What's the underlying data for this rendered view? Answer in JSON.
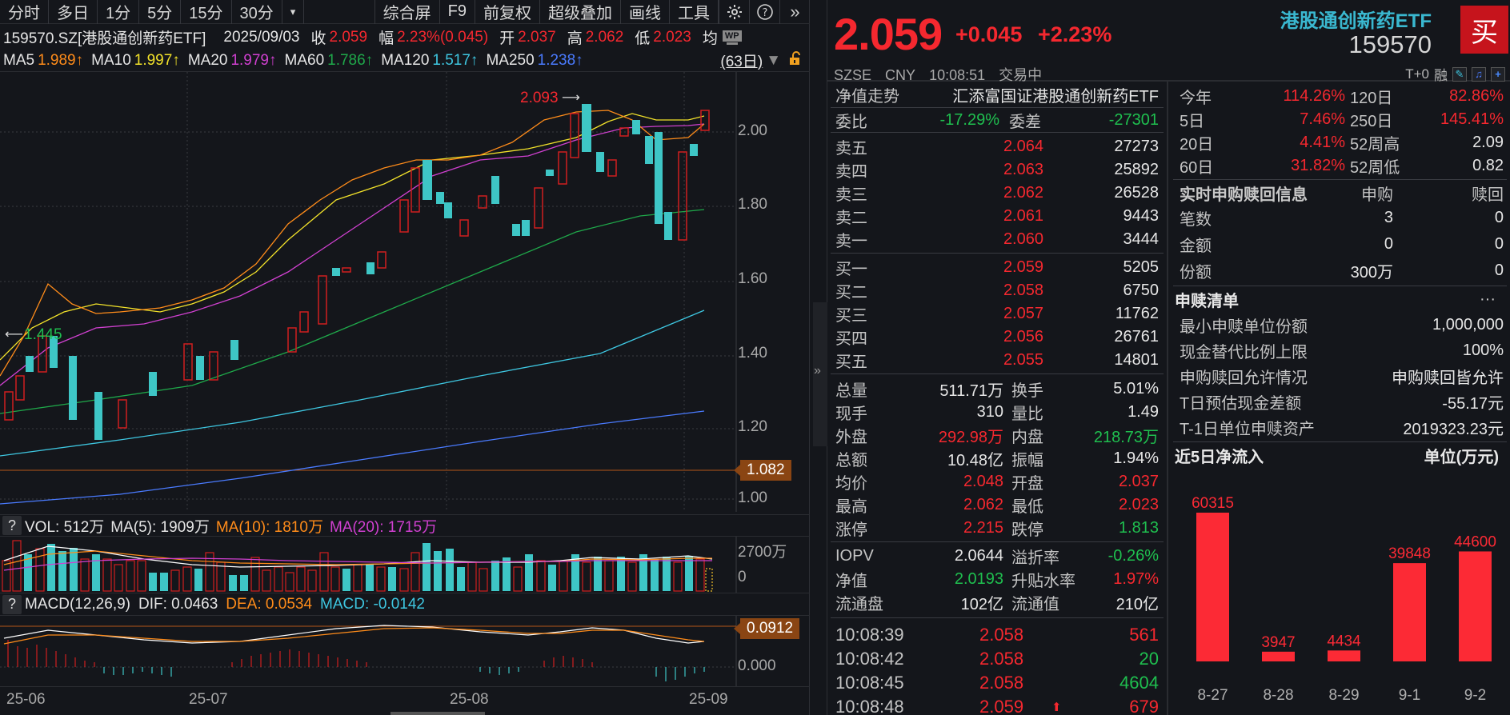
{
  "toolbar": {
    "periods": [
      "分时",
      "多日",
      "1分",
      "5分",
      "15分",
      "30分"
    ],
    "more_icon": "dropdown-icon",
    "actions": [
      "综合屏",
      "F9",
      "前复权",
      "超级叠加",
      "画线",
      "工具"
    ],
    "icons": [
      "gear-icon",
      "help-icon",
      "expand-icon"
    ]
  },
  "info": {
    "symbol": "159570.SZ[港股通创新药ETF]",
    "date": "2025/09/03",
    "close_label": "收",
    "close": "2.059",
    "range_label": "幅",
    "range": "2.23%(0.045)",
    "open_label": "开",
    "open": "2.037",
    "high_label": "高",
    "high": "2.062",
    "low_label": "低",
    "low": "2.023",
    "avg_label": "均",
    "wp_label": "WP"
  },
  "ma": {
    "items": [
      {
        "label": "MA5",
        "value": "1.989↑",
        "color": "#ff8c1a"
      },
      {
        "label": "MA10",
        "value": "1.997↑",
        "color": "#f2e22a"
      },
      {
        "label": "MA20",
        "value": "1.979↑",
        "color": "#d040d0"
      },
      {
        "label": "MA60",
        "value": "1.786↑",
        "color": "#1fa84a"
      },
      {
        "label": "MA120",
        "value": "1.517↑",
        "color": "#3ec6e0"
      },
      {
        "label": "MA250",
        "value": "1.238↑",
        "color": "#4a7bff"
      }
    ],
    "range": "(63日)"
  },
  "price_axis": {
    "ticks": [
      "2.00",
      "1.80",
      "1.60",
      "1.40",
      "1.20",
      "1.00"
    ],
    "tag": "1.082",
    "max_label": "2.093",
    "min_label": "1.445"
  },
  "volume": {
    "label": "VOL: 512万",
    "ma5": "MA(5): 1909万",
    "ma10": "MA(10): 1810万",
    "ma20": "MA(20): 1715万",
    "axis_top": "2700万",
    "axis_zero": "0"
  },
  "macd": {
    "label": "MACD(12,26,9)",
    "dif": "DIF: 0.0463",
    "dea": "DEA: 0.0534",
    "macd": "MACD: -0.0142",
    "tag": "0.0912",
    "axis_zero": "0.000"
  },
  "dates": [
    "25-06",
    "25-07",
    "25-08",
    "25-09"
  ],
  "quote": {
    "price": "2.059",
    "change": "+0.045",
    "change_pct": "+2.23%",
    "exchange": "SZSE",
    "currency": "CNY",
    "time": "10:08:51",
    "status": "交易中",
    "name": "港股通创新药ETF",
    "code": "159570",
    "buy": "买",
    "tplus": "T+0",
    "margin": "融"
  },
  "orderbook": {
    "nav_label": "净值走势",
    "fund_name": "汇添富国证港股通创新药ETF",
    "ratio_label": "委比",
    "ratio": "-17.29%",
    "diff_label": "委差",
    "diff": "-27301",
    "asks": [
      {
        "label": "卖五",
        "price": "2.064",
        "vol": "27273"
      },
      {
        "label": "卖四",
        "price": "2.063",
        "vol": "25892"
      },
      {
        "label": "卖三",
        "price": "2.062",
        "vol": "26528"
      },
      {
        "label": "卖二",
        "price": "2.061",
        "vol": "9443"
      },
      {
        "label": "卖一",
        "price": "2.060",
        "vol": "3444"
      }
    ],
    "bids": [
      {
        "label": "买一",
        "price": "2.059",
        "vol": "5205"
      },
      {
        "label": "买二",
        "price": "2.058",
        "vol": "6750"
      },
      {
        "label": "买三",
        "price": "2.057",
        "vol": "11762"
      },
      {
        "label": "买四",
        "price": "2.056",
        "vol": "26761"
      },
      {
        "label": "买五",
        "price": "2.055",
        "vol": "14801"
      }
    ]
  },
  "stats": [
    {
      "l1": "总量",
      "v1": "511.71万",
      "c1": "white",
      "l2": "换手",
      "v2": "5.01%",
      "c2": "white"
    },
    {
      "l1": "现手",
      "v1": "310",
      "c1": "white",
      "l2": "量比",
      "v2": "1.49",
      "c2": "white"
    },
    {
      "l1": "外盘",
      "v1": "292.98万",
      "c1": "red",
      "l2": "内盘",
      "v2": "218.73万",
      "c2": "green"
    },
    {
      "l1": "总额",
      "v1": "10.48亿",
      "c1": "white",
      "l2": "振幅",
      "v2": "1.94%",
      "c2": "white"
    },
    {
      "l1": "均价",
      "v1": "2.048",
      "c1": "red",
      "l2": "开盘",
      "v2": "2.037",
      "c2": "red"
    },
    {
      "l1": "最高",
      "v1": "2.062",
      "c1": "red",
      "l2": "最低",
      "v2": "2.023",
      "c2": "red"
    },
    {
      "l1": "涨停",
      "v1": "2.215",
      "c1": "red",
      "l2": "跌停",
      "v2": "1.813",
      "c2": "green"
    }
  ],
  "etf_stats": [
    {
      "l1": "IOPV",
      "v1": "2.0644",
      "c1": "white",
      "l2": "溢折率",
      "v2": "-0.26%",
      "c2": "green"
    },
    {
      "l1": "净值",
      "v1": "2.0193",
      "c1": "green",
      "l2": "升贴水率",
      "v2": "1.97%",
      "c2": "red"
    },
    {
      "l1": "流通盘",
      "v1": "102亿",
      "c1": "white",
      "l2": "流通值",
      "v2": "210亿",
      "c2": "white"
    }
  ],
  "ticks": [
    {
      "time": "10:08:39",
      "price": "2.058",
      "arrow": "",
      "qty": "561",
      "qc": "red"
    },
    {
      "time": "10:08:42",
      "price": "2.058",
      "arrow": "",
      "qty": "20",
      "qc": "green"
    },
    {
      "time": "10:08:45",
      "price": "2.058",
      "arrow": "",
      "qty": "4604",
      "qc": "green"
    },
    {
      "time": "10:08:48",
      "price": "2.059",
      "arrow": "⬆",
      "qty": "679",
      "qc": "red"
    }
  ],
  "performance": [
    {
      "l1": "今年",
      "v1": "114.26%",
      "c1": "red",
      "l2": "120日",
      "v2": "82.86%",
      "c2": "red"
    },
    {
      "l1": "5日",
      "v1": "7.46%",
      "c1": "red",
      "l2": "250日",
      "v2": "145.41%",
      "c2": "red"
    },
    {
      "l1": "20日",
      "v1": "4.41%",
      "c1": "red",
      "l2": "52周高",
      "v2": "2.09",
      "c2": "white"
    },
    {
      "l1": "60日",
      "v1": "31.82%",
      "c1": "red",
      "l2": "52周低",
      "v2": "0.82",
      "c2": "white"
    }
  ],
  "subscription": {
    "title": "实时申购赎回信息",
    "col1": "申购",
    "col2": "赎回",
    "rows": [
      {
        "l": "笔数",
        "v1": "3",
        "v2": "0"
      },
      {
        "l": "金额",
        "v1": "0",
        "v2": "0"
      },
      {
        "l": "份额",
        "v1": "300万",
        "v2": "0"
      }
    ]
  },
  "creation_list": {
    "title": "申赎清单",
    "more": "···",
    "rows": [
      {
        "l": "最小申赎单位份额",
        "v": "1,000,000"
      },
      {
        "l": "现金替代比例上限",
        "v": "100%"
      },
      {
        "l": "申购赎回允许情况",
        "v": "申购赎回皆允许"
      },
      {
        "l": "T日预估现金差额",
        "v": "-55.17元"
      },
      {
        "l": "T-1日单位申赎资产",
        "v": "2019323.23元"
      }
    ]
  },
  "net_flow": {
    "title": "近5日净流入",
    "unit": "单位(万元)"
  },
  "chart_data": {
    "type": "bar",
    "title": "近5日净流入",
    "ylabel": "单位(万元)",
    "categories": [
      "8-27",
      "8-28",
      "8-29",
      "9-1",
      "9-2"
    ],
    "values": [
      60315,
      3947,
      4434,
      39848,
      44600
    ],
    "color": "#fc2a35"
  }
}
